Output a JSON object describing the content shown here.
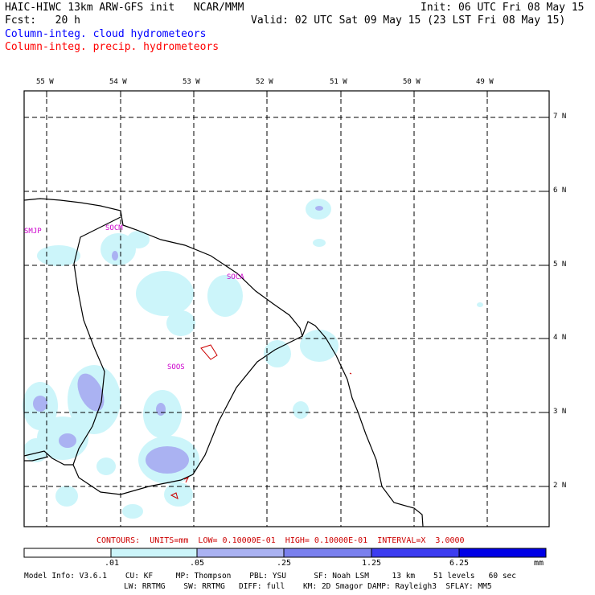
{
  "header": {
    "model_title": "HAIC-HIWC 13km ARW-GFS init   NCAR/MMM",
    "init_time": "Init: 06 UTC Fri 08 May 15",
    "forecast_hour": "Fcst:   20 h",
    "valid_time": "Valid: 02 UTC Sat 09 May 15 (23 LST Fri 08 May 15)",
    "field_cloud": "Column-integ. cloud hydrometeors",
    "field_precip": "Column-integ. precip. hydrometeors"
  },
  "colors": {
    "cloud_label": "#0000ff",
    "precip_label": "#ff0000",
    "station_label": "#cc00cc",
    "contour_line": "#cc0000",
    "shade_1": "#ccf5fa",
    "shade_2": "#aab2f2",
    "shade_3": "#7a80ee",
    "shade_4": "#3c3cf0",
    "shade_5": "#0000e6"
  },
  "map": {
    "longitude_labels": [
      "55 W",
      "54 W",
      "53 W",
      "52 W",
      "51 W",
      "50 W",
      "49 W"
    ],
    "latitude_labels": [
      "7 N",
      "6 N",
      "5 N",
      "4 N",
      "3 N",
      "2 N"
    ],
    "stations": [
      {
        "id": "SMJP"
      },
      {
        "id": "SOCM"
      },
      {
        "id": "SOCA"
      },
      {
        "id": "SOOS"
      }
    ]
  },
  "footer": {
    "contours_line": "CONTOURS:  UNITS=mm  LOW= 0.10000E-01  HIGH= 0.10000E-01  INTERVAL=X  3.0000",
    "colorbar_ticks": [
      ".01",
      ".05",
      ".25",
      "1.25",
      "6.25"
    ],
    "colorbar_units": "mm",
    "model_info_1": "Model Info: V3.6.1    CU: KF     MP: Thompson    PBL: YSU      SF: Noah LSM     13 km    51 levels   60 sec",
    "model_info_2": "LW: RRTMG    SW: RRTMG   DIFF: full    KM: 2D Smagor DAMP: Rayleigh3  SFLAY: MM5"
  }
}
